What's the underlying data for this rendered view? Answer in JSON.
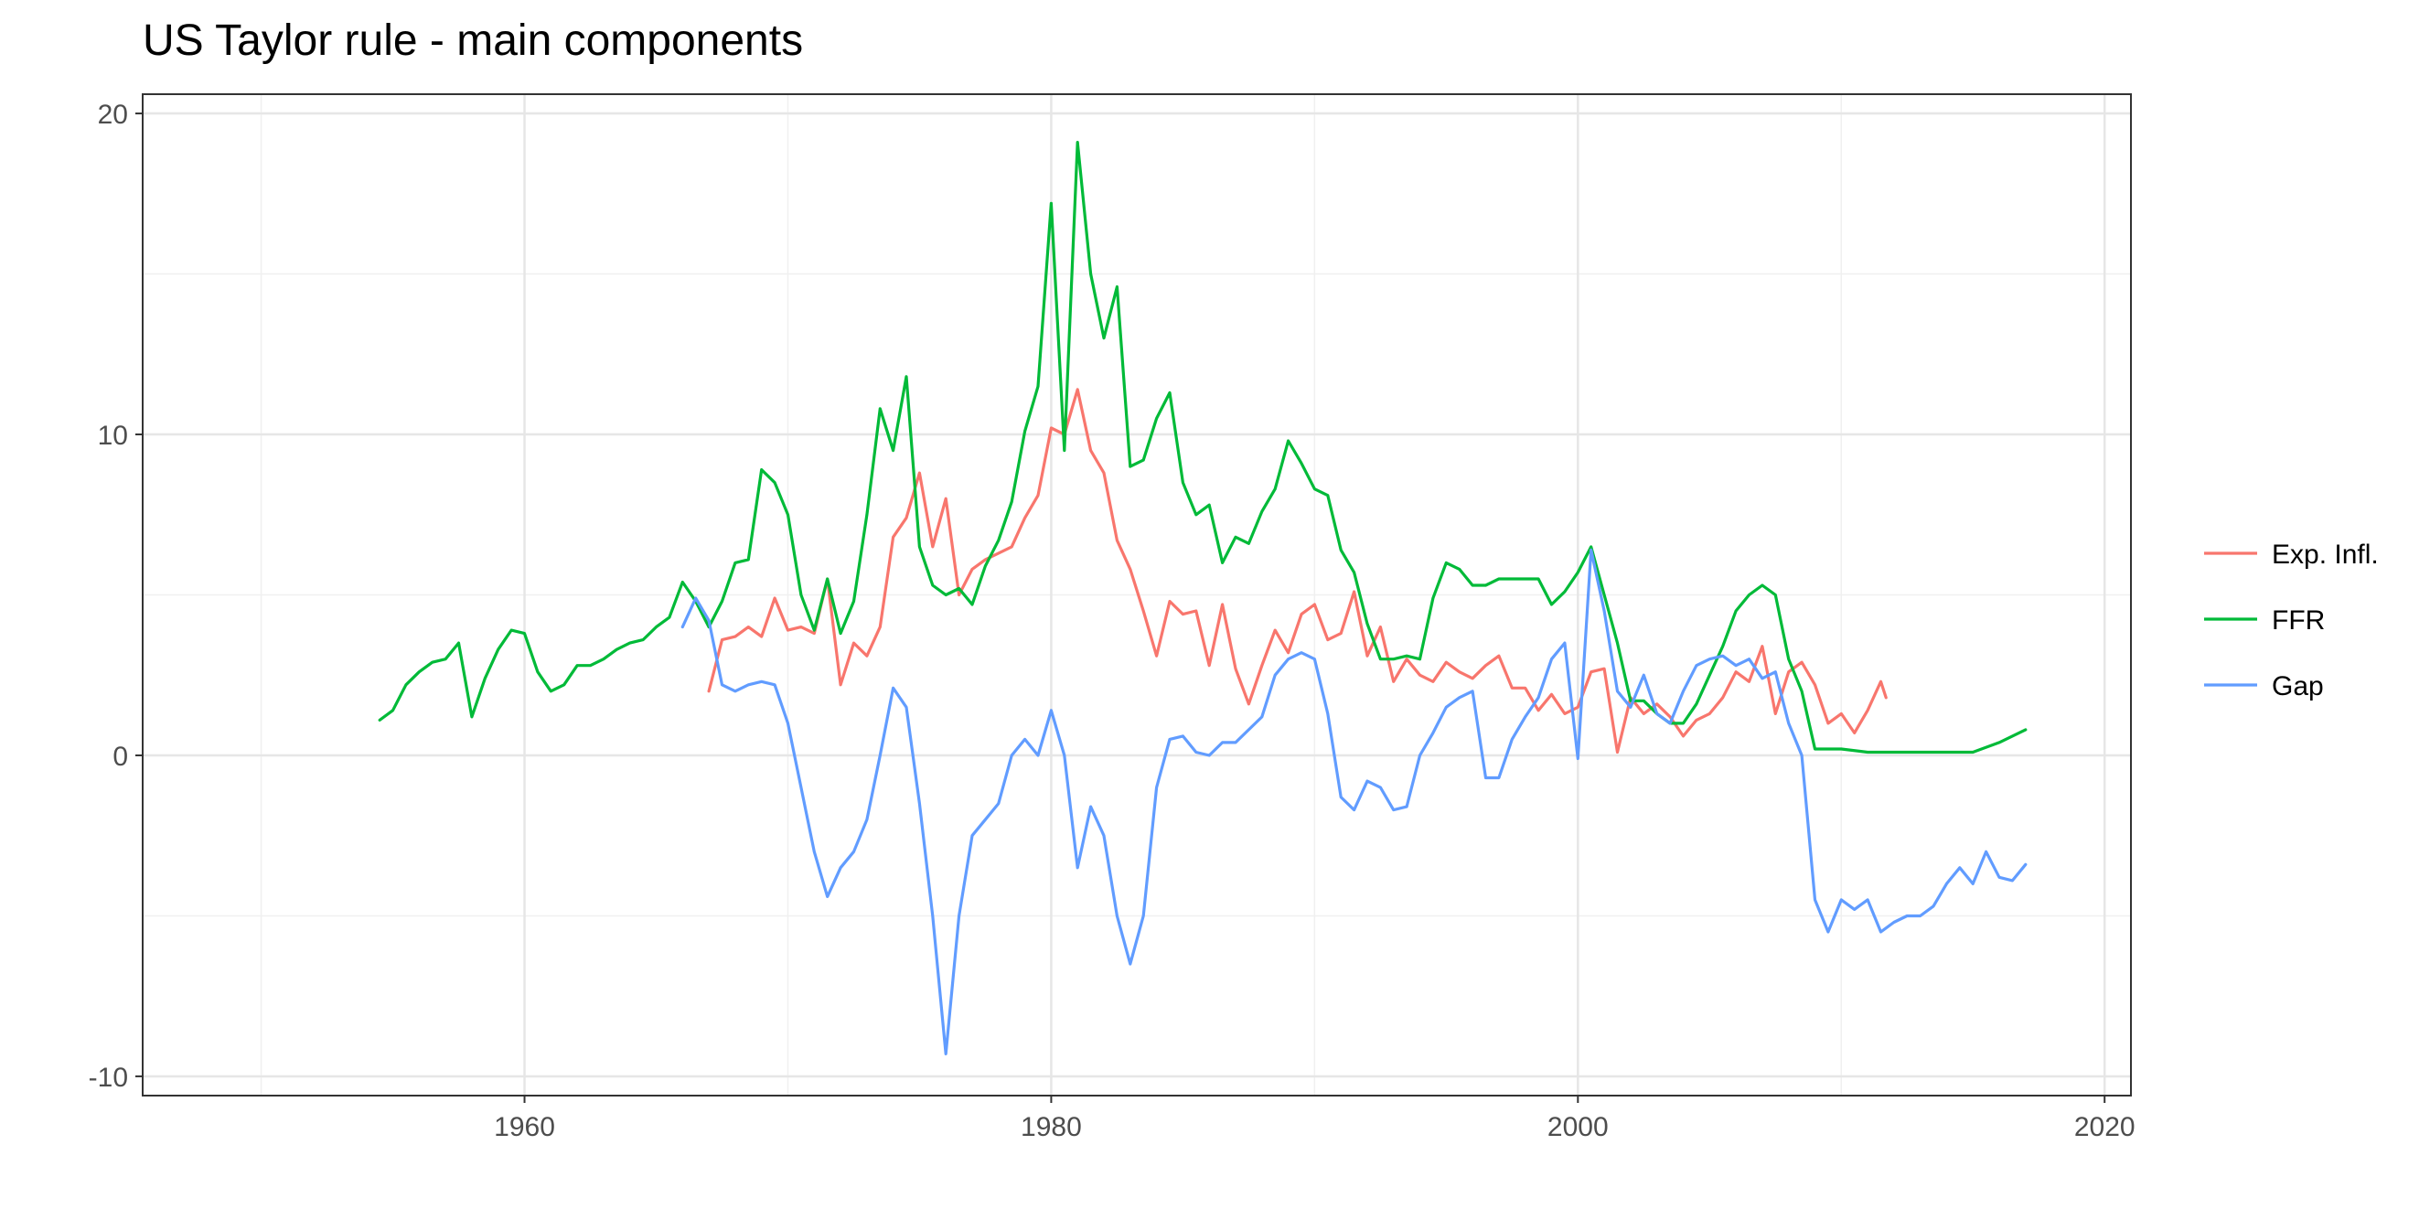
{
  "chart_data": {
    "type": "line",
    "title": "US Taylor rule - main components",
    "xlabel": "",
    "ylabel": "",
    "xlim": [
      1945.5,
      2021
    ],
    "ylim": [
      -10.6,
      20.6
    ],
    "x_ticks": [
      1960,
      1980,
      2000,
      2020
    ],
    "x_tick_labels": [
      "1960",
      "1980",
      "2000",
      "2020"
    ],
    "y_ticks": [
      -10,
      0,
      10,
      20
    ],
    "y_tick_labels": [
      "-10",
      "0",
      "10",
      "20"
    ],
    "grid": true,
    "legend_position": "right",
    "series": [
      {
        "name": "Exp. Infl.",
        "color": "#F8766D",
        "x": [
          1967.0,
          1967.5,
          1968.0,
          1968.5,
          1969.0,
          1969.5,
          1970.0,
          1970.5,
          1971.0,
          1971.5,
          1972.0,
          1972.5,
          1973.0,
          1973.5,
          1974.0,
          1974.5,
          1975.0,
          1975.5,
          1976.0,
          1976.5,
          1977.0,
          1977.5,
          1978.0,
          1978.5,
          1979.0,
          1979.5,
          1980.0,
          1980.5,
          1981.0,
          1981.5,
          1982.0,
          1982.5,
          1983.0,
          1983.5,
          1984.0,
          1984.5,
          1985.0,
          1985.5,
          1986.0,
          1986.5,
          1987.0,
          1987.5,
          1988.0,
          1988.5,
          1989.0,
          1989.5,
          1990.0,
          1990.5,
          1991.0,
          1991.5,
          1992.0,
          1992.5,
          1993.0,
          1993.5,
          1994.0,
          1994.5,
          1995.0,
          1995.5,
          1996.0,
          1996.5,
          1997.0,
          1997.5,
          1998.0,
          1998.5,
          1999.0,
          1999.5,
          2000.0,
          2000.5,
          2001.0,
          2001.5,
          2002.0,
          2002.5,
          2003.0,
          2003.5,
          2004.0,
          2004.5,
          2005.0,
          2005.5,
          2006.0,
          2006.5,
          2007.0,
          2007.5,
          2008.0,
          2008.5,
          2009.0,
          2009.5,
          2010.0,
          2010.5,
          2011.0,
          2011.5
        ],
        "values": [
          2.0,
          3.6,
          3.7,
          4.0,
          3.7,
          4.9,
          3.9,
          4.0,
          3.8,
          5.5,
          2.2,
          3.5,
          3.1,
          4.0,
          6.8,
          7.4,
          8.8,
          6.5,
          8.0,
          5.0,
          5.8,
          6.1,
          6.3,
          6.5,
          7.4,
          8.1,
          10.2,
          10.0,
          11.4,
          9.5,
          8.8,
          6.7,
          5.8,
          4.5,
          3.1,
          4.8,
          4.4,
          4.5,
          2.8,
          4.7,
          2.7,
          1.6,
          2.8,
          3.9,
          3.2,
          4.4,
          4.7,
          3.6,
          3.8,
          5.1,
          3.1,
          4.0,
          2.3,
          3.0,
          2.5,
          2.3,
          2.9,
          2.6,
          2.4,
          2.8,
          3.1,
          2.1,
          2.1,
          1.4,
          1.9,
          1.3,
          1.5,
          2.6,
          2.7,
          0.1,
          1.8,
          1.3,
          1.6,
          1.2,
          0.6,
          1.1,
          1.3,
          1.8,
          2.6,
          2.3,
          3.4,
          1.3,
          2.6,
          2.9,
          2.2,
          1.0,
          1.3,
          0.7,
          1.4,
          2.3
        ],
        "series_end": [
          2011.7,
          1.8
        ]
      },
      {
        "name": "FFR",
        "color": "#00BA38",
        "x": [
          1954.5,
          1955.0,
          1955.5,
          1956.0,
          1956.5,
          1957.0,
          1957.5,
          1958.0,
          1958.5,
          1959.0,
          1959.5,
          1960.0,
          1960.5,
          1961.0,
          1961.5,
          1962.0,
          1962.5,
          1963.0,
          1963.5,
          1964.0,
          1964.5,
          1965.0,
          1965.5,
          1966.0,
          1966.5,
          1967.0,
          1967.5,
          1968.0,
          1968.5,
          1969.0,
          1969.5,
          1970.0,
          1970.5,
          1971.0,
          1971.5,
          1972.0,
          1972.5,
          1973.0,
          1973.5,
          1974.0,
          1974.5,
          1975.0,
          1975.5,
          1976.0,
          1976.5,
          1977.0,
          1977.5,
          1978.0,
          1978.5,
          1979.0,
          1979.5,
          1980.0,
          1980.5,
          1981.0,
          1981.5,
          1982.0,
          1982.5,
          1983.0,
          1983.5,
          1984.0,
          1984.5,
          1985.0,
          1985.5,
          1986.0,
          1986.5,
          1987.0,
          1987.5,
          1988.0,
          1988.5,
          1989.0,
          1989.5,
          1990.0,
          1990.5,
          1991.0,
          1991.5,
          1992.0,
          1992.5,
          1993.0,
          1993.5,
          1994.0,
          1994.5,
          1995.0,
          1995.5,
          1996.0,
          1996.5,
          1997.0,
          1997.5,
          1998.0,
          1998.5,
          1999.0,
          1999.5,
          2000.0,
          2000.5,
          2001.0,
          2001.5,
          2002.0,
          2002.5,
          2003.0,
          2003.5,
          2004.0,
          2004.5,
          2005.0,
          2005.5,
          2006.0,
          2006.5,
          2007.0,
          2007.5,
          2008.0,
          2008.5,
          2009.0,
          2010.0,
          2011.0,
          2012.0,
          2013.0,
          2014.0,
          2015.0,
          2016.0,
          2017.0
        ],
        "values": [
          1.1,
          1.4,
          2.2,
          2.6,
          2.9,
          3.0,
          3.5,
          1.2,
          2.4,
          3.3,
          3.9,
          3.8,
          2.6,
          2.0,
          2.2,
          2.8,
          2.8,
          3.0,
          3.3,
          3.5,
          3.6,
          4.0,
          4.3,
          5.4,
          4.8,
          4.0,
          4.8,
          6.0,
          6.1,
          8.9,
          8.5,
          7.5,
          5.0,
          3.9,
          5.5,
          3.8,
          4.8,
          7.5,
          10.8,
          9.5,
          11.8,
          6.5,
          5.3,
          5.0,
          5.2,
          4.7,
          5.9,
          6.7,
          7.9,
          10.1,
          11.5,
          17.2,
          9.5,
          19.1,
          15.0,
          13.0,
          14.6,
          9.0,
          9.2,
          10.5,
          11.3,
          8.5,
          7.5,
          7.8,
          6.0,
          6.8,
          6.6,
          7.6,
          8.3,
          9.8,
          9.1,
          8.3,
          8.1,
          6.4,
          5.7,
          4.1,
          3.0,
          3.0,
          3.1,
          3.0,
          4.9,
          6.0,
          5.8,
          5.3,
          5.3,
          5.5,
          5.5,
          5.5,
          5.5,
          4.7,
          5.1,
          5.7,
          6.5,
          5.0,
          3.5,
          1.7,
          1.7,
          1.3,
          1.0,
          1.0,
          1.6,
          2.5,
          3.4,
          4.5,
          5.0,
          5.3,
          5.0,
          3.0,
          2.0,
          0.2,
          0.2,
          0.1,
          0.1,
          0.1,
          0.1,
          0.1,
          0.4,
          0.8
        ]
      },
      {
        "name": "Gap",
        "color": "#619CFF",
        "x": [
          1966.0,
          1966.5,
          1967.0,
          1967.5,
          1968.0,
          1968.5,
          1969.0,
          1969.5,
          1970.0,
          1970.5,
          1971.0,
          1971.5,
          1972.0,
          1972.5,
          1973.0,
          1973.5,
          1974.0,
          1974.5,
          1975.0,
          1975.5,
          1976.0,
          1976.5,
          1977.0,
          1977.5,
          1978.0,
          1978.5,
          1979.0,
          1979.5,
          1980.0,
          1980.5,
          1981.0,
          1981.5,
          1982.0,
          1982.5,
          1983.0,
          1983.5,
          1984.0,
          1984.5,
          1985.0,
          1985.5,
          1986.0,
          1986.5,
          1987.0,
          1987.5,
          1988.0,
          1988.5,
          1989.0,
          1989.5,
          1990.0,
          1990.5,
          1991.0,
          1991.5,
          1992.0,
          1992.5,
          1993.0,
          1993.5,
          1994.0,
          1994.5,
          1995.0,
          1995.5,
          1996.0,
          1996.5,
          1997.0,
          1997.5,
          1998.0,
          1998.5,
          1999.0,
          1999.5,
          2000.0,
          2000.5,
          2001.0,
          2001.5,
          2002.0,
          2002.5,
          2003.0,
          2003.5,
          2004.0,
          2004.5,
          2005.0,
          2005.5,
          2006.0,
          2006.5,
          2007.0,
          2007.5,
          2008.0,
          2008.5,
          2009.0,
          2009.5,
          2010.0,
          2010.5,
          2011.0,
          2011.5,
          2012.0,
          2012.5,
          2013.0,
          2013.5,
          2014.0,
          2014.5,
          2015.0,
          2015.5,
          2016.0,
          2016.5,
          2017.0
        ],
        "values": [
          4.0,
          4.9,
          4.2,
          2.2,
          2.0,
          2.2,
          2.3,
          2.2,
          1.0,
          -1.0,
          -3.0,
          -4.4,
          -3.5,
          -3.0,
          -2.0,
          0.0,
          2.1,
          1.5,
          -1.5,
          -5.0,
          -9.3,
          -5.0,
          -2.5,
          -2.0,
          -1.5,
          0.0,
          0.5,
          0.0,
          1.4,
          0.0,
          -3.5,
          -1.6,
          -2.5,
          -5.0,
          -6.5,
          -5.0,
          -1.0,
          0.5,
          0.6,
          0.1,
          0.0,
          0.4,
          0.4,
          0.8,
          1.2,
          2.5,
          3.0,
          3.2,
          3.0,
          1.3,
          -1.3,
          -1.7,
          -0.8,
          -1.0,
          -1.7,
          -1.6,
          0.0,
          0.7,
          1.5,
          1.8,
          2.0,
          -0.7,
          -0.7,
          0.5,
          1.2,
          1.8,
          3.0,
          3.5,
          -0.1,
          6.4,
          4.5,
          2.0,
          1.5,
          2.5,
          1.3,
          1.0,
          2.0,
          2.8,
          3.0,
          3.1,
          2.8,
          3.0,
          2.4,
          2.6,
          1.0,
          0.0,
          -4.5,
          -5.5,
          -4.5,
          -4.8,
          -4.5,
          -5.5,
          -5.2,
          -5.0,
          -5.0,
          -4.7,
          -4.0,
          -3.5,
          -4.0,
          -3.0,
          -3.8,
          -3.9,
          -3.4
        ]
      }
    ]
  }
}
